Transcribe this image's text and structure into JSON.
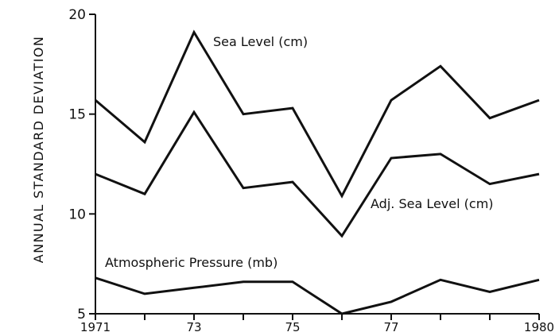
{
  "chart_data": {
    "type": "line",
    "title": "",
    "xlabel": "",
    "ylabel": "ANNUAL STANDARD DEVIATION",
    "x": [
      1971,
      1972,
      1973,
      1974,
      1975,
      1976,
      1977,
      1978,
      1979,
      1980
    ],
    "xticks": [
      {
        "value": 1971,
        "label": "1971"
      },
      {
        "value": 1973,
        "label": "73"
      },
      {
        "value": 1975,
        "label": "75"
      },
      {
        "value": 1977,
        "label": "77"
      },
      {
        "value": 1980,
        "label": "1980"
      }
    ],
    "yticks": [
      {
        "value": 5,
        "label": "5"
      },
      {
        "value": 10,
        "label": "10"
      },
      {
        "value": 15,
        "label": "15"
      },
      {
        "value": 20,
        "label": "20"
      }
    ],
    "xlim": [
      1971,
      1980
    ],
    "ylim": [
      5,
      20
    ],
    "grid": false,
    "legend": "none",
    "series": [
      {
        "name": "Sea Level (cm)",
        "values": [
          15.7,
          13.6,
          19.1,
          15.0,
          15.3,
          10.9,
          15.7,
          17.4,
          14.8,
          15.7
        ]
      },
      {
        "name": "Adj. Sea Level (cm)",
        "values": [
          12.0,
          11.0,
          15.1,
          11.3,
          11.6,
          8.9,
          12.8,
          13.0,
          11.5,
          12.0
        ]
      },
      {
        "name": "Atmospheric Pressure (mb)",
        "values": [
          6.8,
          6.0,
          6.3,
          6.6,
          6.6,
          5.0,
          5.6,
          6.7,
          6.1,
          6.7
        ]
      }
    ]
  }
}
